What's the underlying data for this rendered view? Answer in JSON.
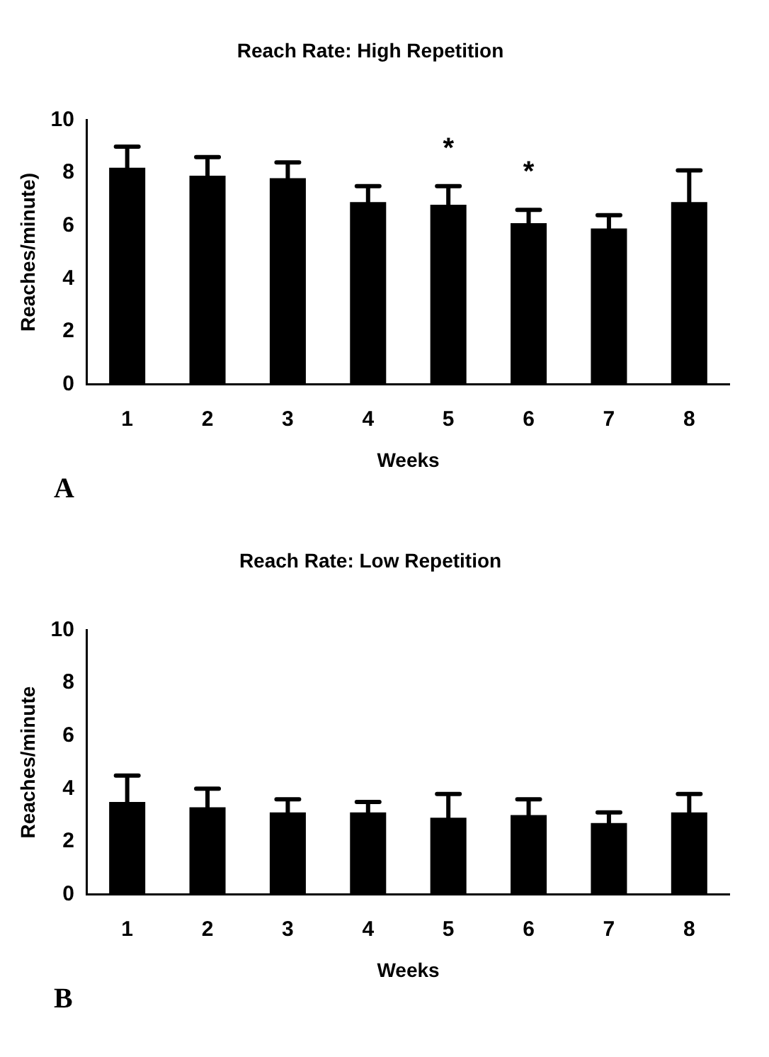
{
  "chart_data": [
    {
      "type": "bar",
      "title": "Reach Rate: High Repetition",
      "xlabel": "Weeks",
      "ylabel": "Reaches/minute)",
      "categories": [
        "1",
        "2",
        "3",
        "4",
        "5",
        "6",
        "7",
        "8"
      ],
      "values": [
        8.2,
        7.9,
        7.8,
        6.9,
        6.8,
        6.1,
        5.9,
        6.9
      ],
      "errors": [
        [
          8.2,
          9.0
        ],
        [
          7.9,
          8.6
        ],
        [
          7.8,
          8.4
        ],
        [
          6.9,
          7.5
        ],
        [
          6.8,
          7.5
        ],
        [
          6.1,
          6.6
        ],
        [
          5.9,
          6.4
        ],
        [
          6.9,
          8.1
        ]
      ],
      "color": "#000000",
      "ylim": [
        0,
        10
      ],
      "yticks": [
        0,
        2,
        4,
        6,
        8,
        10
      ],
      "grid": false,
      "legend": false,
      "annotations": [
        {
          "text": "*",
          "x": "5",
          "y": 7.5
        },
        {
          "text": "*",
          "x": "6",
          "y": 6.6
        },
        "A"
      ]
    },
    {
      "type": "bar",
      "title": "Reach Rate: Low Repetition",
      "xlabel": "Weeks",
      "ylabel": "Reaches/minute",
      "categories": [
        "1",
        "2",
        "3",
        "4",
        "5",
        "6",
        "7",
        "8"
      ],
      "values": [
        3.5,
        3.3,
        3.1,
        3.1,
        2.9,
        3.0,
        2.7,
        3.1
      ],
      "errors": [
        [
          3.5,
          4.5
        ],
        [
          3.3,
          4.0
        ],
        [
          3.1,
          3.6
        ],
        [
          3.1,
          3.5
        ],
        [
          2.9,
          3.8
        ],
        [
          3.0,
          3.6
        ],
        [
          2.7,
          3.1
        ],
        [
          3.1,
          3.8
        ]
      ],
      "color": "#000000",
      "ylim": [
        0,
        10
      ],
      "yticks": [
        0,
        2,
        4,
        6,
        8,
        10
      ],
      "grid": false,
      "legend": false,
      "annotations": [
        "B"
      ]
    }
  ]
}
